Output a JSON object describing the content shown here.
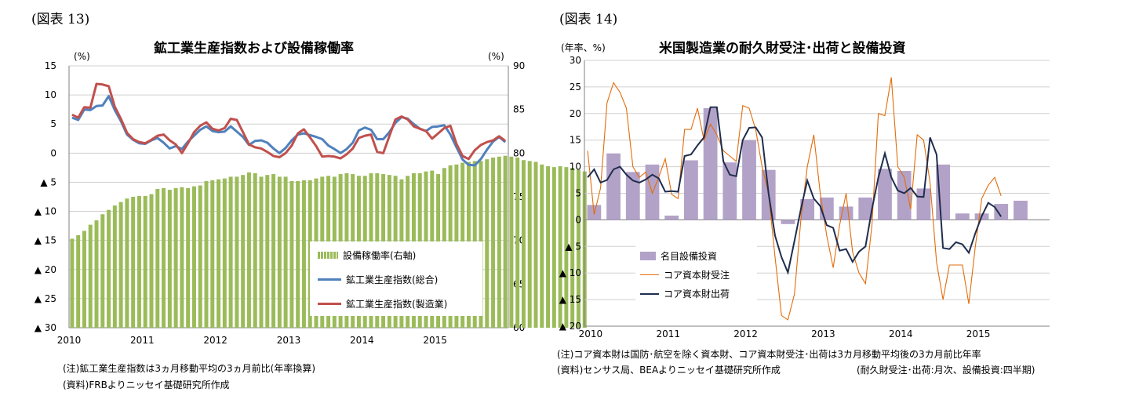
{
  "left": {
    "fig_label": "(図表 13)",
    "title": "鉱工業生産指数および設備稼働率",
    "unit_left": "(%)",
    "unit_right": "(%)",
    "note1": "(注)鉱工業生産指数は3ヵ月移動平均の3ヵ月前比(年率換算)",
    "note2": "(資料)FRBよりニッセイ基礎研究所作成",
    "legend": [
      {
        "label": "設備稼働率(右軸)"
      },
      {
        "label": "鉱工業生産指数(総合)"
      },
      {
        "label": "鉱工業生産指数(製造業)"
      }
    ]
  },
  "right": {
    "fig_label": "(図表 14)",
    "title": "米国製造業の耐久財受注･出荷と設備投資",
    "unit_left": "(年率、%)",
    "note1": "(注)コア資本財は国防･航空を除く資本財、コア資本財受注･出荷は3カ月移動平均後の3カ月前比年率",
    "note2": "(資料)センサス局、BEAよりニッセイ基礎研究所作成",
    "note3": "(耐久財受注･出荷:月次、設備投資:四半期)",
    "legend": [
      {
        "label": "名目設備投資"
      },
      {
        "label": "コア資本財受注"
      },
      {
        "label": "コア資本財出荷"
      }
    ]
  },
  "colors": {
    "bar_green": "#9bbb59",
    "line_blue": "#4f81bd",
    "line_red": "#c0504d",
    "bar_purple": "#b3a2c7",
    "line_orange": "#e36c09",
    "line_navy": "#1f2d4e"
  },
  "chart_data": [
    {
      "type": "bar+line",
      "title": "鉱工業生産指数および設備稼働率",
      "x_ticks": [
        "2010",
        "2011",
        "2012",
        "2013",
        "2014",
        "2015"
      ],
      "y_left": {
        "range": [
          -30,
          15
        ],
        "ticks": [
          15,
          10,
          5,
          0,
          -5,
          -10,
          -15,
          -20,
          -25,
          -30
        ],
        "tick_labels": [
          "15",
          "10",
          "5",
          "0",
          "▲ 5",
          "▲ 10",
          "▲ 15",
          "▲ 20",
          "▲ 25",
          "▲ 30"
        ]
      },
      "y_right": {
        "range": [
          60,
          90
        ],
        "ticks": [
          90,
          85,
          80,
          75,
          70,
          65,
          60
        ]
      },
      "grid": true,
      "legend_position": "bottom-right",
      "x_start": "2010-01",
      "series": [
        {
          "name": "設備稼働率(右軸)",
          "type": "bar",
          "axis": "right",
          "values": [
            70.2,
            70.6,
            71.1,
            71.8,
            72.3,
            73.0,
            73.5,
            74.0,
            74.4,
            74.8,
            75.0,
            75.1,
            75.1,
            75.3,
            75.9,
            76.0,
            75.8,
            76.0,
            76.1,
            76.0,
            76.2,
            76.3,
            76.8,
            76.9,
            77.0,
            77.1,
            77.3,
            77.3,
            77.5,
            77.8,
            77.7,
            77.3,
            77.5,
            77.6,
            77.3,
            77.3,
            76.8,
            76.8,
            76.9,
            76.9,
            77.1,
            77.3,
            77.4,
            77.3,
            77.6,
            77.7,
            77.6,
            77.4,
            77.4,
            77.7,
            77.7,
            77.6,
            77.5,
            77.4,
            77.0,
            77.4,
            77.7,
            77.7,
            77.9,
            78.0,
            77.6,
            78.3,
            78.6,
            78.7,
            78.9,
            79.0,
            79.1,
            79.1,
            79.3,
            79.5,
            79.6,
            79.7,
            79.6,
            79.5,
            79.2,
            79.1,
            79.0,
            78.7,
            78.5,
            78.4,
            78.5,
            78.4,
            78.3,
            78.1,
            77.9
          ]
        },
        {
          "name": "鉱工業生産指数(総合)",
          "type": "line",
          "axis": "left",
          "values": [
            6.1,
            5.7,
            7.5,
            7.4,
            8.1,
            8.2,
            9.8,
            7.4,
            5.5,
            3.2,
            2.3,
            1.7,
            1.6,
            2.2,
            2.6,
            1.8,
            0.8,
            1.2,
            0.7,
            2.0,
            3.0,
            4.0,
            4.6,
            3.8,
            3.6,
            3.7,
            4.6,
            3.7,
            2.8,
            1.4,
            2.1,
            2.2,
            1.8,
            0.8,
            0.0,
            0.9,
            2.2,
            3.2,
            3.4,
            3.1,
            2.8,
            2.4,
            1.3,
            0.7,
            0.0,
            0.7,
            1.8,
            3.9,
            4.4,
            4.0,
            2.4,
            2.4,
            3.6,
            5.2,
            6.2,
            5.9,
            5.0,
            4.2,
            3.8,
            4.5,
            4.6,
            4.8,
            3.2,
            1.0,
            -1.1,
            -2.0,
            -2.1,
            -1.0,
            0.6,
            2.0,
            2.8,
            1.9
          ]
        },
        {
          "name": "鉱工業生産指数(製造業)",
          "type": "line",
          "axis": "left",
          "values": [
            6.6,
            6.1,
            7.9,
            7.8,
            11.9,
            11.8,
            11.5,
            8.0,
            5.9,
            3.5,
            2.4,
            1.9,
            1.7,
            2.3,
            3.0,
            3.2,
            2.2,
            1.5,
            0.0,
            1.7,
            3.6,
            4.7,
            5.3,
            4.2,
            3.9,
            4.3,
            5.9,
            5.7,
            3.6,
            1.5,
            1.0,
            0.8,
            0.2,
            -0.5,
            -0.7,
            0.0,
            1.3,
            3.4,
            4.1,
            2.7,
            1.2,
            -0.6,
            -0.5,
            -0.6,
            -0.9,
            -0.2,
            0.8,
            2.6,
            3.0,
            3.2,
            0.2,
            0.0,
            2.9,
            5.8,
            6.3,
            5.8,
            4.6,
            4.2,
            3.8,
            2.5,
            3.4,
            4.3,
            4.7,
            1.6,
            -0.5,
            -1.0,
            0.5,
            1.4,
            1.9,
            2.2,
            2.9,
            2.1
          ]
        }
      ]
    },
    {
      "type": "bar+line",
      "title": "米国製造業の耐久財受注･出荷と設備投資",
      "x_ticks": [
        "2010",
        "2011",
        "2012",
        "2013",
        "2014",
        "2015"
      ],
      "y": {
        "range": [
          -20,
          30
        ],
        "ticks": [
          30,
          25,
          20,
          15,
          10,
          5,
          0,
          -5,
          -10,
          -15,
          -20
        ],
        "tick_labels": [
          "30",
          "25",
          "20",
          "15",
          "10",
          "5",
          "0",
          "▲ 5",
          "▲ 10",
          "▲ 15",
          "▲ 20"
        ]
      },
      "grid": true,
      "legend_position": "bottom-left",
      "series": [
        {
          "name": "名目設備投資",
          "type": "bar",
          "frequency": "quarterly",
          "x_start": "2010Q1",
          "values": [
            2.8,
            12.5,
            9.0,
            10.4,
            0.8,
            11.2,
            21.0,
            10.8,
            15.0,
            9.4,
            -0.8,
            3.9,
            4.2,
            2.5,
            4.2,
            9.6,
            9.2,
            5.9,
            10.4,
            1.2,
            1.2,
            3.0,
            3.6
          ]
        },
        {
          "name": "コア資本財受注",
          "type": "line",
          "frequency": "monthly",
          "x_start": "2010-01",
          "values": [
            13,
            1,
            6,
            22,
            25.8,
            24,
            21,
            10,
            8,
            9,
            5,
            8,
            11.5,
            4.8,
            4,
            17,
            17,
            21,
            15,
            18,
            16,
            13,
            12,
            11,
            21.5,
            21,
            17,
            10,
            5,
            -7,
            -18,
            -18.8,
            -14,
            0,
            10,
            16,
            5,
            -3,
            -9,
            -1,
            5,
            -6,
            -10,
            -12,
            -1,
            20,
            19.6,
            26.8,
            10,
            8,
            2,
            16,
            15,
            7,
            -8,
            -15,
            -8.5,
            -8.5,
            -8.5,
            -15.8,
            -5,
            4,
            6.5,
            8,
            4.5
          ]
        },
        {
          "name": "コア資本財出荷",
          "type": "line",
          "frequency": "monthly",
          "x_start": "2010-01",
          "values": [
            8,
            9.5,
            7,
            7.5,
            9.5,
            10,
            8.5,
            7.4,
            7,
            7.6,
            8.5,
            7.8,
            5.3,
            5.4,
            5.3,
            12,
            12.3,
            14,
            15.5,
            21.2,
            21.2,
            11,
            8.5,
            8.2,
            15,
            17.3,
            17.4,
            15.5,
            5,
            -3,
            -7,
            -9.9,
            -4,
            2,
            7.4,
            4,
            2.6,
            -1,
            -1.5,
            -5.8,
            -5.5,
            -7.9,
            -6,
            -5,
            2,
            8,
            12.5,
            8,
            5.5,
            5,
            6,
            4.4,
            4.3,
            15.5,
            12.3,
            -5.3,
            -5.5,
            -4.2,
            -4.6,
            -6.2,
            -2.5,
            0.7,
            3.2,
            2.4,
            0.6
          ]
        }
      ]
    }
  ]
}
